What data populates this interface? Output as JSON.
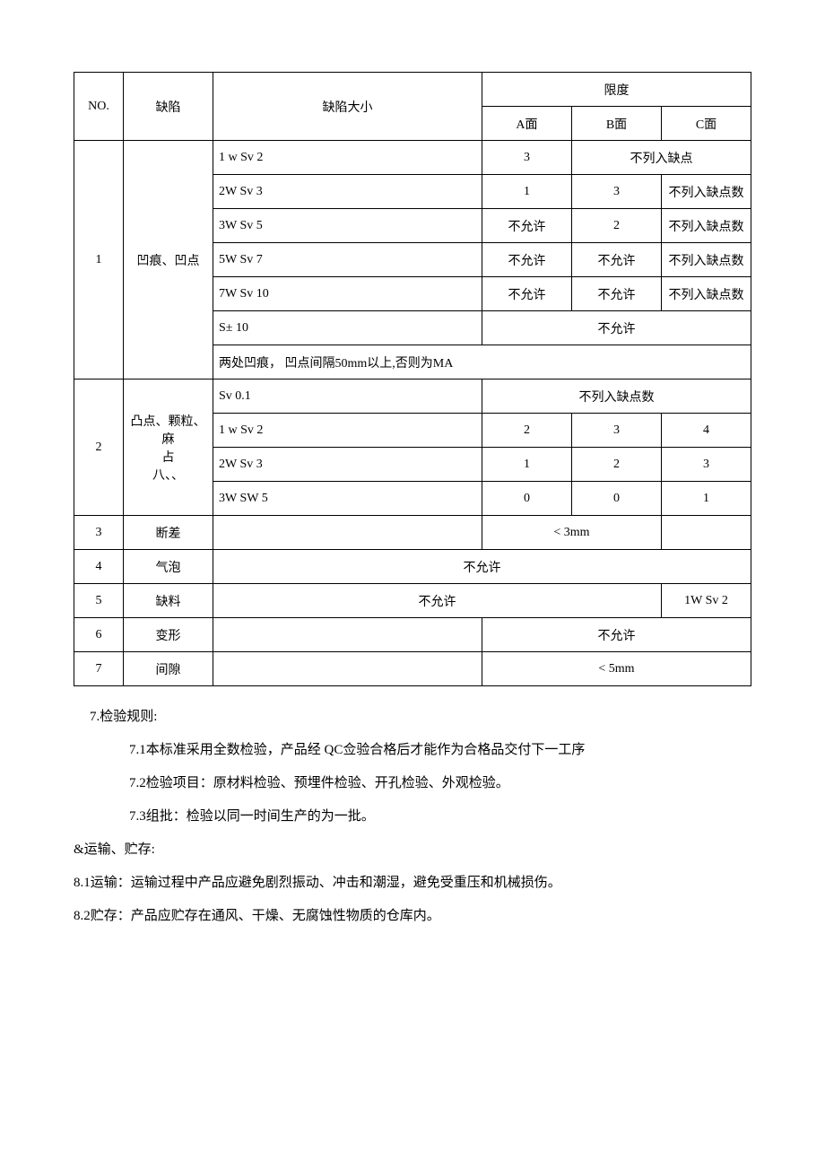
{
  "table": {
    "headers": {
      "no": "NO.",
      "defect": "缺陷",
      "size": "缺陷大小",
      "limit": "限度",
      "face_a": "A面",
      "face_b": "B面",
      "face_c": "C面"
    },
    "section1": {
      "no": "1",
      "defect": "凹痕、凹点",
      "rows": [
        {
          "size": "1 w Sv 2",
          "a": "3",
          "bc": "不列入缺点"
        },
        {
          "size": "2W Sv 3",
          "a": "1",
          "b": "3",
          "c": "不列入缺点数"
        },
        {
          "size": "3W Sv 5",
          "a": "不允许",
          "b": "2",
          "c": "不列入缺点数"
        },
        {
          "size": "5W Sv 7",
          "a": "不允许",
          "b": "不允许",
          "c": "不列入缺点数"
        },
        {
          "size": "7W Sv 10",
          "a": "不允许",
          "b": "不允许",
          "c": "不列入缺点数"
        },
        {
          "size": "S± 10",
          "abc": "不允许"
        },
        {
          "note": "两处凹痕，  凹点间隔50mm以上,否则为MA"
        }
      ]
    },
    "section2": {
      "no": "2",
      "defect_line1": "凸点、颗粒、麻",
      "defect_line2": "占",
      "defect_line3": "八、、",
      "rows": [
        {
          "size": "Sv 0.1",
          "abc": "不列入缺点数"
        },
        {
          "size": "1 w Sv 2",
          "a": "2",
          "b": "3",
          "c": "4"
        },
        {
          "size": "2W Sv 3",
          "a": "1",
          "b": "2",
          "c": "3"
        },
        {
          "size": "3W SW 5",
          "a": "0",
          "b": "0",
          "c": "1"
        }
      ]
    },
    "section3": {
      "no": "3",
      "defect": "断差",
      "ab": "< 3mm"
    },
    "section4": {
      "no": "4",
      "defect": "气泡",
      "all": "不允许"
    },
    "section5": {
      "no": "5",
      "defect": "缺料",
      "size_ab": "不允许",
      "c": "1W Sv 2"
    },
    "section6": {
      "no": "6",
      "defect": "变形",
      "abc": "不允许"
    },
    "section7": {
      "no": "7",
      "defect": "间隙",
      "abc": "< 5mm"
    }
  },
  "paragraphs": {
    "p1": "7.检验规则:",
    "p2": "7.1本标准采用全数检验，产品经 QC佥验合格后才能作为合格品交付下一工序",
    "p3": "7.2检验项目：原材料检验、预埋件检验、开孔检验、外观检验。",
    "p4": "7.3组批：检验以同一时间生产的为一批。",
    "p5": "&运输、贮存:",
    "p6": "8.1运输：运输过程中产品应避免剧烈振动、冲击和潮湿，避免受重压和机械损伤。",
    "p7": "8.2贮存：产品应贮存在通风、干燥、无腐蚀性物质的仓库内。"
  }
}
